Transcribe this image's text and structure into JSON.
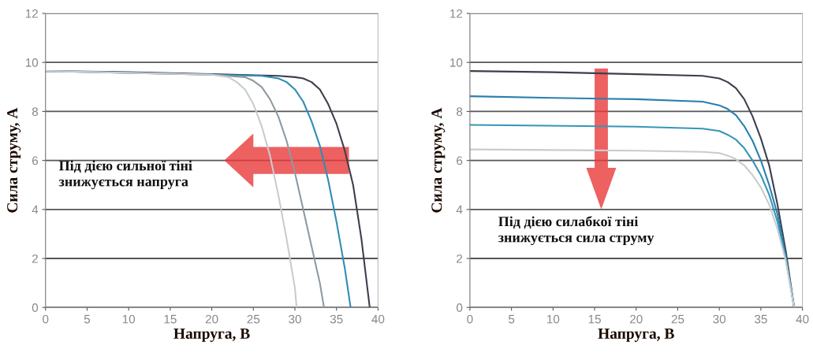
{
  "chart_data": [
    {
      "type": "line",
      "xlabel": "Напруга, В",
      "ylabel": "Сила струму, А",
      "xlim": [
        0,
        40
      ],
      "ylim": [
        0,
        12
      ],
      "xticks": [
        0,
        5,
        10,
        15,
        20,
        25,
        30,
        35,
        40
      ],
      "yticks": [
        0,
        2,
        4,
        6,
        8,
        10,
        12
      ],
      "grid": "y",
      "legend": false,
      "line_style": "solid",
      "marker": "none",
      "annotations": [
        "Під дією сильної тіні\nзнижується напруга"
      ],
      "series": [
        {
          "color": "#3c3f4c",
          "x": [
            0,
            10,
            20,
            28,
            30,
            31,
            32,
            33,
            34,
            35,
            36,
            37,
            38,
            39
          ],
          "values": [
            9.65,
            9.6,
            9.52,
            9.45,
            9.4,
            9.35,
            9.2,
            8.9,
            8.3,
            7.5,
            6.4,
            5.0,
            2.8,
            0
          ]
        },
        {
          "color": "#2f8db5",
          "x": [
            0,
            20,
            26,
            28,
            29,
            30,
            31,
            32,
            33,
            34,
            35,
            36,
            36.7
          ],
          "values": [
            9.65,
            9.5,
            9.45,
            9.35,
            9.2,
            8.9,
            8.4,
            7.6,
            6.6,
            5.2,
            3.5,
            1.6,
            0
          ]
        },
        {
          "color": "#8c9aa3",
          "x": [
            0,
            20,
            24,
            25,
            26,
            27,
            28,
            29,
            30,
            31,
            32,
            33,
            33.5
          ],
          "values": [
            9.65,
            9.5,
            9.4,
            9.25,
            9.0,
            8.5,
            7.8,
            6.8,
            5.5,
            4.0,
            2.5,
            1.0,
            0
          ]
        },
        {
          "color": "#c8ccd0",
          "x": [
            0,
            20,
            22,
            23,
            24,
            25,
            26,
            27,
            28,
            29,
            30,
            30.2
          ],
          "values": [
            9.65,
            9.5,
            9.4,
            9.2,
            8.9,
            8.3,
            7.4,
            6.2,
            4.6,
            2.8,
            0.8,
            0
          ]
        }
      ]
    },
    {
      "type": "line",
      "xlabel": "Напруга, В",
      "ylabel": "Сила струму, А",
      "xlim": [
        0,
        40
      ],
      "ylim": [
        0,
        12
      ],
      "xticks": [
        0,
        5,
        10,
        15,
        20,
        25,
        30,
        35,
        40
      ],
      "yticks": [
        0,
        2,
        4,
        6,
        8,
        10,
        12
      ],
      "grid": "y",
      "legend": false,
      "line_style": "solid",
      "marker": "none",
      "annotations": [
        "Під дією силабкої тіні\nзнижується сила струму"
      ],
      "series": [
        {
          "color": "#3c3f4c",
          "x": [
            0,
            10,
            20,
            28,
            30,
            31,
            32,
            33,
            34,
            35,
            36,
            37,
            38,
            39
          ],
          "values": [
            9.65,
            9.6,
            9.52,
            9.45,
            9.35,
            9.2,
            8.95,
            8.5,
            7.8,
            6.9,
            5.8,
            4.2,
            2.3,
            0
          ]
        },
        {
          "color": "#2a7fae",
          "x": [
            0,
            10,
            20,
            28,
            30,
            31,
            32,
            33,
            34,
            35,
            36,
            37,
            38,
            39
          ],
          "values": [
            8.62,
            8.55,
            8.5,
            8.4,
            8.25,
            8.1,
            7.85,
            7.4,
            6.8,
            6.0,
            5.0,
            3.8,
            2.1,
            0
          ]
        },
        {
          "color": "#3596b8",
          "x": [
            0,
            20,
            28,
            30,
            31,
            32,
            33,
            34,
            35,
            36,
            37,
            38,
            39
          ],
          "values": [
            7.45,
            7.38,
            7.3,
            7.2,
            7.05,
            6.85,
            6.5,
            6.0,
            5.4,
            4.6,
            3.5,
            2.0,
            0
          ]
        },
        {
          "color": "#c8ccd0",
          "x": [
            0,
            20,
            28,
            30,
            31,
            32,
            33,
            34,
            35,
            36,
            37,
            38,
            39
          ],
          "values": [
            6.45,
            6.4,
            6.35,
            6.3,
            6.2,
            6.05,
            5.8,
            5.4,
            4.9,
            4.2,
            3.2,
            1.9,
            0
          ]
        }
      ]
    }
  ]
}
